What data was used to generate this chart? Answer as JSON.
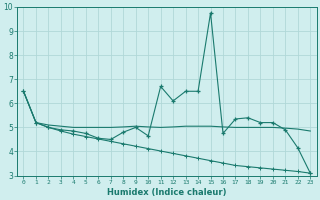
{
  "xlabel": "Humidex (Indice chaleur)",
  "xlim": [
    -0.5,
    23.5
  ],
  "ylim": [
    3,
    10
  ],
  "yticks": [
    3,
    4,
    5,
    6,
    7,
    8,
    9,
    10
  ],
  "xticks": [
    0,
    1,
    2,
    3,
    4,
    5,
    6,
    7,
    8,
    9,
    10,
    11,
    12,
    13,
    14,
    15,
    16,
    17,
    18,
    19,
    20,
    21,
    22,
    23
  ],
  "xtick_labels": [
    "0",
    "1",
    "2",
    "3",
    "4",
    "5",
    "6",
    "7",
    "8",
    "9",
    "10",
    "11",
    "12",
    "13",
    "14",
    "15",
    "16",
    "17",
    "18",
    "19",
    "20",
    "21",
    "22",
    "23"
  ],
  "color": "#1a7a6e",
  "bg_color": "#d0eeee",
  "grid_color": "#b0d8d8",
  "line1_x": [
    0,
    1,
    2,
    3,
    4,
    5,
    6,
    7,
    8,
    9,
    10,
    11,
    12,
    13,
    14,
    15,
    16,
    17,
    18,
    19,
    20,
    21,
    22,
    23
  ],
  "line1_y": [
    6.5,
    5.2,
    5.0,
    4.9,
    4.85,
    4.75,
    4.55,
    4.5,
    4.8,
    5.0,
    4.65,
    6.7,
    6.1,
    6.5,
    6.5,
    9.75,
    4.75,
    5.35,
    5.4,
    5.2,
    5.2,
    4.9,
    4.15,
    3.1
  ],
  "line2_x": [
    0,
    1,
    2,
    3,
    4,
    5,
    6,
    7,
    8,
    9,
    10,
    11,
    12,
    13,
    14,
    15,
    16,
    17,
    18,
    19,
    20,
    21,
    22,
    23
  ],
  "line2_y": [
    6.5,
    5.2,
    5.1,
    5.05,
    5.0,
    5.0,
    5.0,
    5.0,
    5.02,
    5.05,
    5.02,
    5.0,
    5.02,
    5.05,
    5.05,
    5.05,
    5.02,
    5.0,
    5.0,
    5.0,
    5.0,
    4.97,
    4.93,
    4.85
  ],
  "line3_x": [
    0,
    1,
    2,
    3,
    4,
    5,
    6,
    7,
    8,
    9,
    10,
    11,
    12,
    13,
    14,
    15,
    16,
    17,
    18,
    19,
    20,
    21,
    22,
    23
  ],
  "line3_y": [
    6.5,
    5.2,
    5.0,
    4.85,
    4.72,
    4.62,
    4.52,
    4.42,
    4.32,
    4.22,
    4.12,
    4.02,
    3.92,
    3.82,
    3.72,
    3.62,
    3.52,
    3.42,
    3.37,
    3.32,
    3.27,
    3.22,
    3.17,
    3.1
  ]
}
